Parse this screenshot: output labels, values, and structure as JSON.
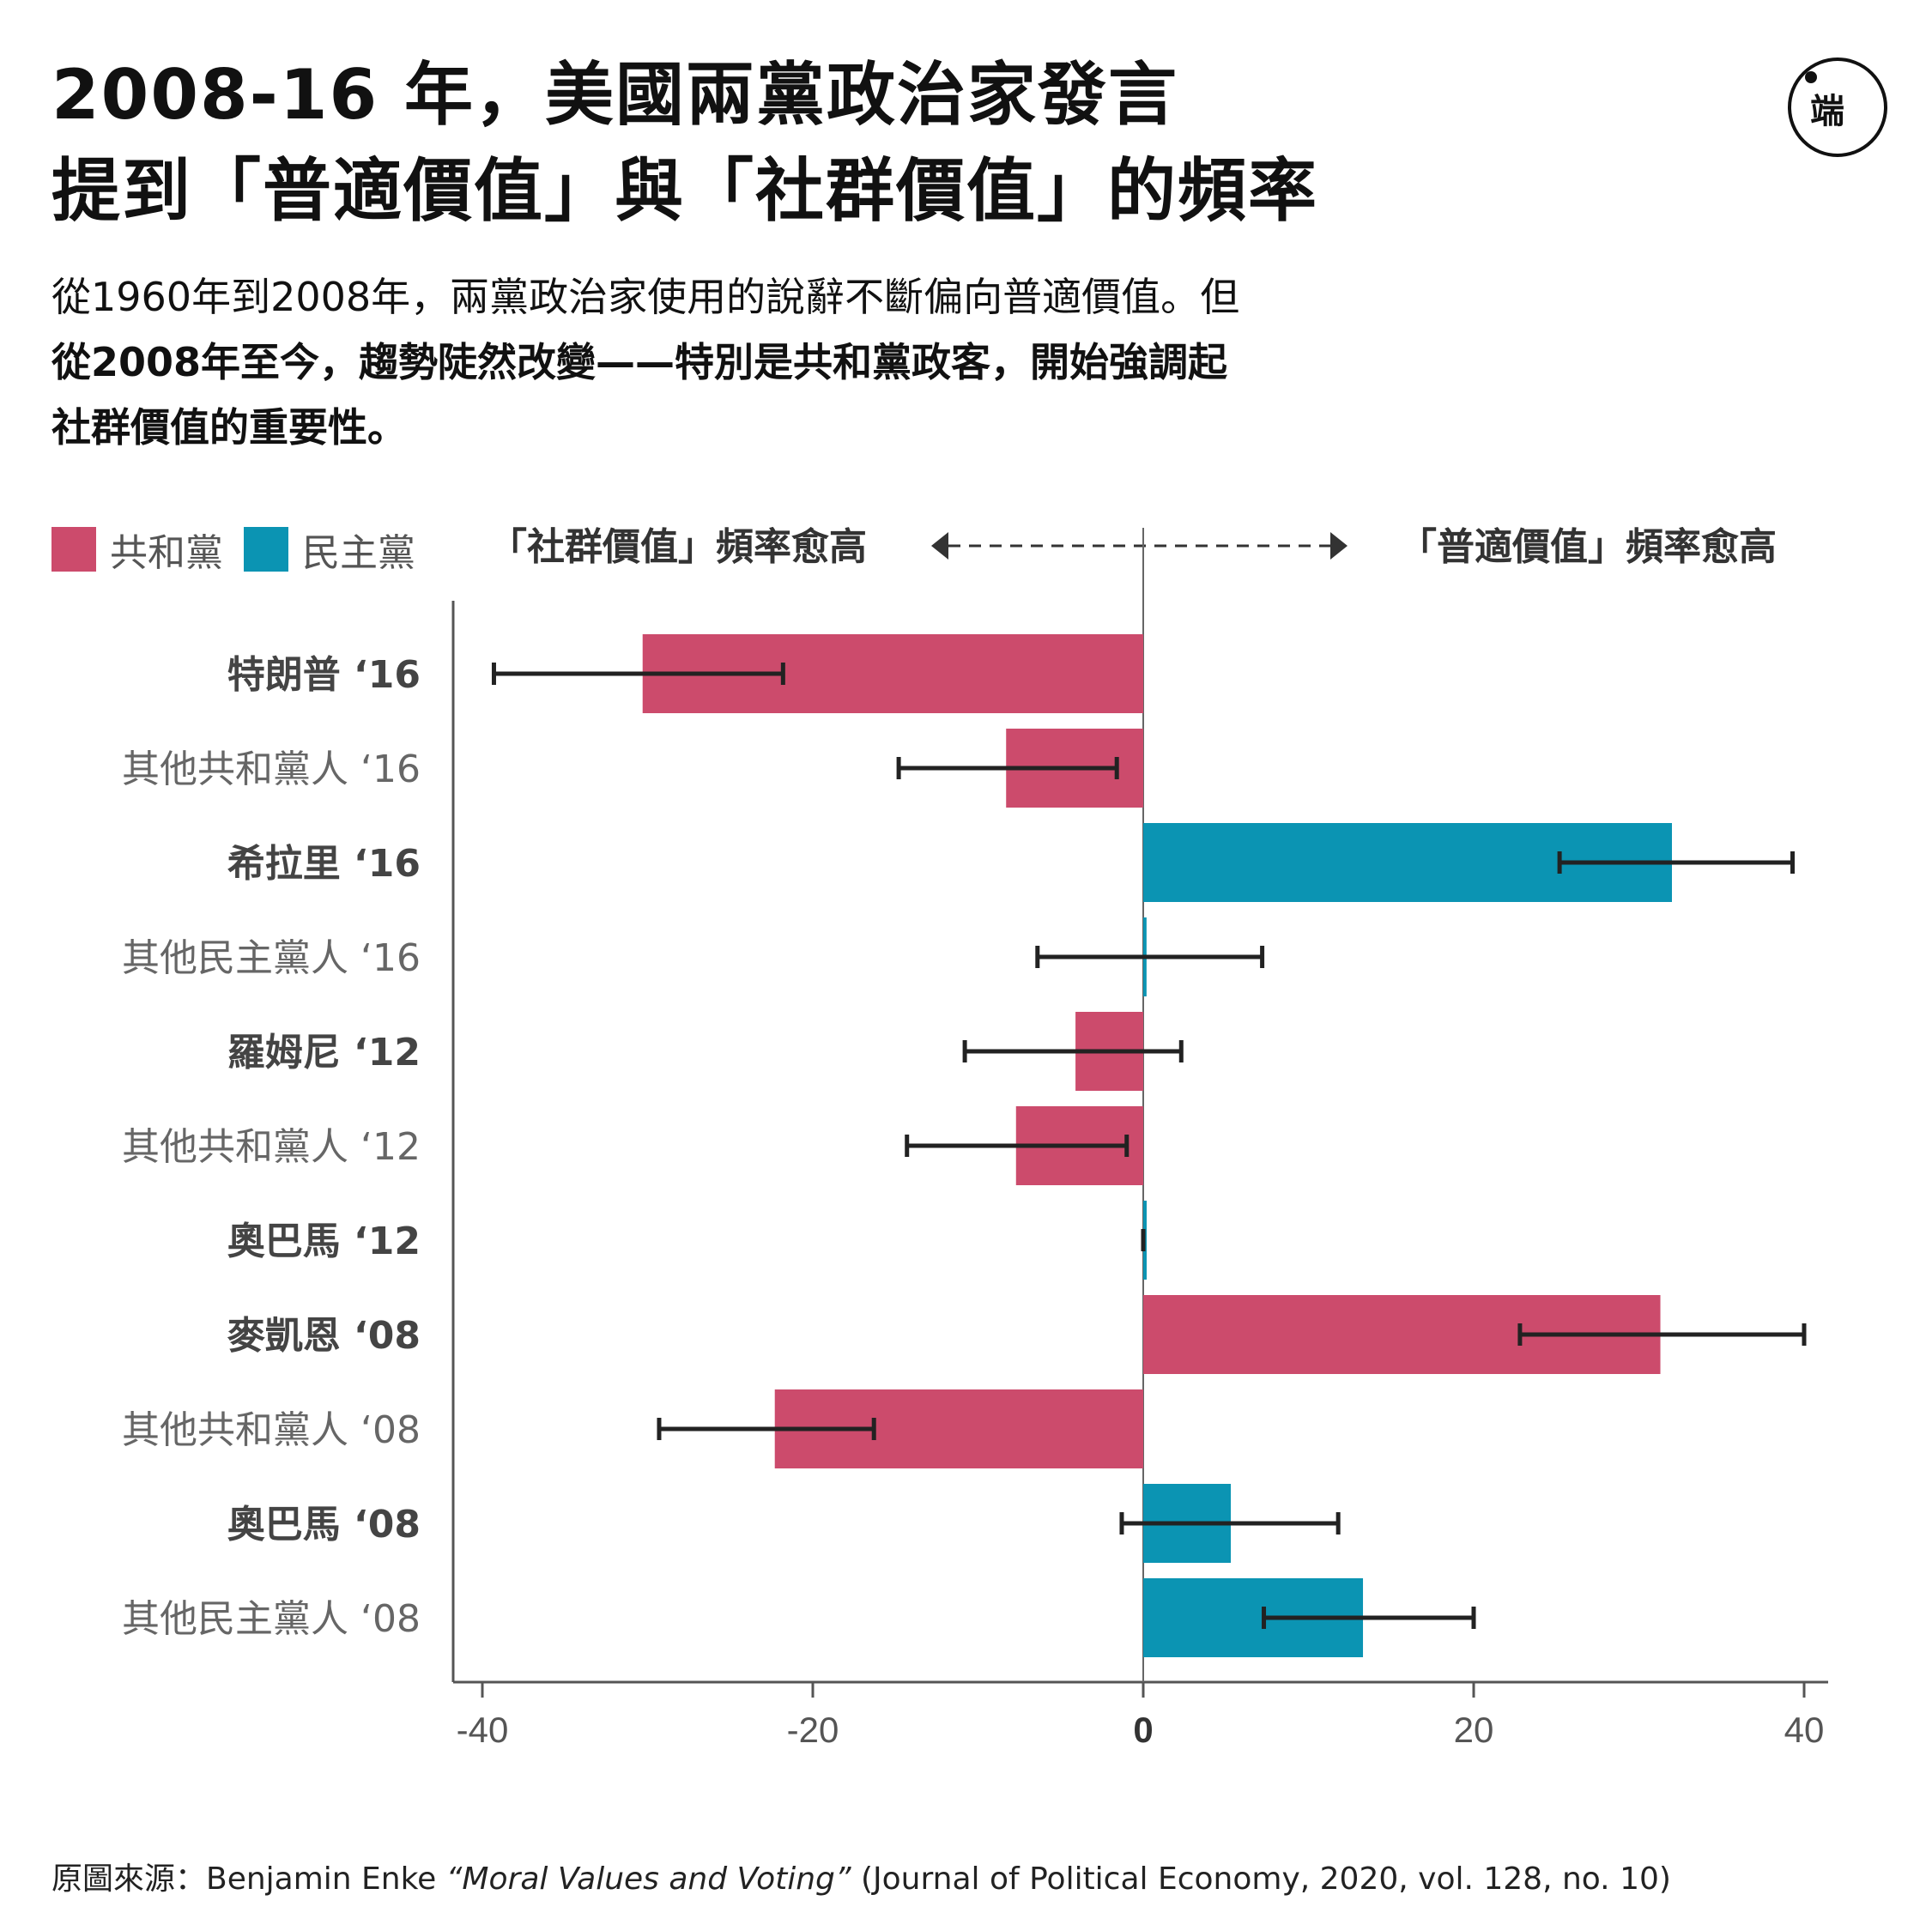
{
  "title": {
    "line1": "2008-16 年，美國兩黨政治家發言",
    "line2": "提到「普適價值」與「社群價值」的頻率"
  },
  "subtitle": {
    "line1": "從1960年到2008年，兩黨政治家使用的說辭不斷偏向普適價值。但",
    "line2": "從2008年至今，趨勢陡然改變——特別是共和黨政客，開始強調起",
    "line3": "社群價值的重要性。"
  },
  "logo": {
    "text": "端"
  },
  "legend": {
    "republican": "共和黨",
    "democrat": "民主黨"
  },
  "direction": {
    "left": "「社群價值」頻率愈高",
    "right": "「普適價值」頻率愈高"
  },
  "colors": {
    "republican": "#cc4b6c",
    "democrat": "#0b94b3",
    "errorbar": "#222222",
    "axis": "#555555"
  },
  "chart_data": {
    "type": "bar",
    "orientation": "horizontal",
    "xlim": [
      -42,
      42
    ],
    "xticks": [
      -40,
      -20,
      0,
      20,
      40
    ],
    "categories": [
      {
        "label": "特朗普 ‘16",
        "party": "republican",
        "bold": true,
        "value": -30.3,
        "ci": [
          -39.3,
          -21.8
        ]
      },
      {
        "label": "其他共和黨人 ‘16",
        "party": "republican",
        "bold": false,
        "value": -8.3,
        "ci": [
          -14.8,
          -1.6
        ]
      },
      {
        "label": "希拉里 ‘16",
        "party": "democrat",
        "bold": true,
        "value": 32.0,
        "ci": [
          25.2,
          39.3
        ]
      },
      {
        "label": "其他民主黨人 ‘16",
        "party": "democrat",
        "bold": false,
        "value": 0.2,
        "ci": [
          -6.4,
          7.2
        ]
      },
      {
        "label": "羅姆尼 ‘12",
        "party": "republican",
        "bold": true,
        "value": -4.1,
        "ci": [
          -10.8,
          2.3
        ]
      },
      {
        "label": "其他共和黨人 ‘12",
        "party": "republican",
        "bold": false,
        "value": -7.7,
        "ci": [
          -14.3,
          -1.0
        ]
      },
      {
        "label": "奧巴馬 ‘12",
        "party": "democrat",
        "bold": true,
        "value": 0.0,
        "ci": [
          0.0,
          0.0
        ]
      },
      {
        "label": "麥凱恩 ‘08",
        "party": "republican",
        "bold": true,
        "value": 31.3,
        "ci": [
          22.8,
          40.0
        ]
      },
      {
        "label": "其他共和黨人 ‘08",
        "party": "republican",
        "bold": false,
        "value": -22.3,
        "ci": [
          -29.3,
          -16.3
        ]
      },
      {
        "label": "奧巴馬 ‘08",
        "party": "democrat",
        "bold": true,
        "value": 5.3,
        "ci": [
          -1.3,
          11.8
        ]
      },
      {
        "label": "其他民主黨人 ‘08",
        "party": "democrat",
        "bold": false,
        "value": 13.3,
        "ci": [
          7.3,
          20.0
        ]
      }
    ]
  },
  "source": {
    "prefix": "原圖來源：Benjamin Enke ",
    "work": "“Moral Values and Voting”",
    "suffix": " (Journal of Political Economy, 2020, vol. 128, no. 10)"
  }
}
